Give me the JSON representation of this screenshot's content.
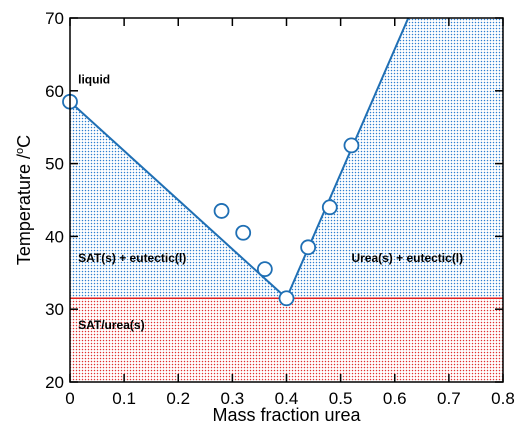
{
  "chart_data": {
    "type": "scatter",
    "xlabel": "Mass fraction urea",
    "ylabel": "Temperature /",
    "ylabel_unit": "C",
    "ylabel_superscript": "o",
    "xlim": [
      0,
      0.8
    ],
    "ylim": [
      20,
      70
    ],
    "x_ticks": [
      0,
      0.1,
      0.2,
      0.3,
      0.4,
      0.5,
      0.6,
      0.7,
      0.8
    ],
    "x_tick_labels": [
      "0",
      "0.1",
      "0.2",
      "0.3",
      "0.4",
      "0.5",
      "0.6",
      "0.7",
      "0.8"
    ],
    "y_ticks": [
      20,
      30,
      40,
      50,
      60,
      70
    ],
    "y_tick_labels": [
      "20",
      "30",
      "40",
      "50",
      "60",
      "70"
    ],
    "grid": false,
    "eutectic_temperature": 31.5,
    "left_liquidus": {
      "x": [
        0,
        0.4
      ],
      "y": [
        58.5,
        31.5
      ]
    },
    "right_liquidus": {
      "x": [
        0.4,
        0.625
      ],
      "y": [
        31.5,
        70
      ]
    },
    "points": [
      {
        "x": 0.0,
        "y": 58.5
      },
      {
        "x": 0.28,
        "y": 43.5
      },
      {
        "x": 0.32,
        "y": 40.5
      },
      {
        "x": 0.36,
        "y": 35.5
      },
      {
        "x": 0.4,
        "y": 31.5
      },
      {
        "x": 0.44,
        "y": 38.5
      },
      {
        "x": 0.48,
        "y": 44.0
      },
      {
        "x": 0.52,
        "y": 52.5
      }
    ],
    "annotations": [
      {
        "text": "liquid",
        "x": 0.015,
        "y": 61.0
      },
      {
        "text": "SAT(s) + eutectic(l)",
        "x": 0.015,
        "y": 36.5
      },
      {
        "text": "Urea(s) + eutectic(l)",
        "x": 0.52,
        "y": 36.5
      },
      {
        "text": "SAT/urea(s)",
        "x": 0.015,
        "y": 27.3
      }
    ],
    "colors": {
      "line": "#1f6fb4",
      "upper_region_dots": "#2f7fd0",
      "lower_region_dots": "#e03030",
      "eutectic_line": "#e02020",
      "marker_fill": "#ffffff",
      "marker_edge": "#1f6fb4"
    }
  }
}
